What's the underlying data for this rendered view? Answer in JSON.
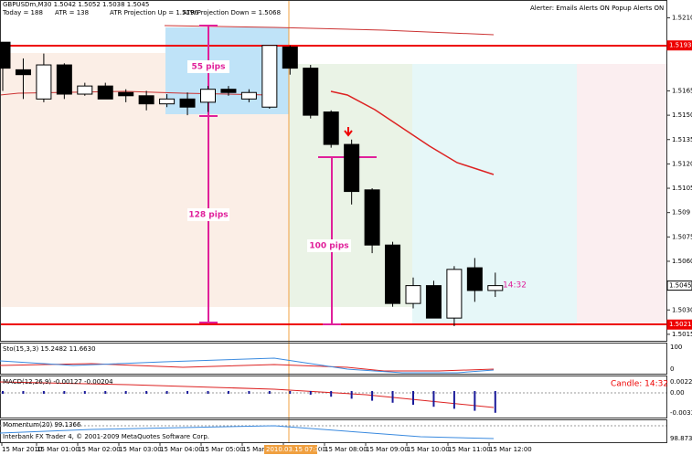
{
  "header": {
    "symbol": "GBPUSDm,M30  1.5042 1.5052 1.5038 1.5045",
    "stats": [
      "Today = 188",
      "ATR = 138",
      "ATR Projection Up = 1.5196",
      "ATR Projection Down = 1.5068"
    ],
    "alerter": "Alerter:  Emails Alerts ON    Popup Alerts ON"
  },
  "chart_data": {
    "type": "candlestick",
    "open": [
      1.5195,
      1.5178,
      1.516,
      1.5181,
      1.5163,
      1.5168,
      1.5164,
      1.5162,
      1.5157,
      1.516,
      1.5158,
      1.5166,
      1.516,
      1.5155,
      1.5192,
      1.5179,
      1.5152,
      1.5132,
      1.5104,
      1.507,
      1.5034,
      1.5045,
      1.5025,
      1.5056,
      1.5042
    ],
    "high": [
      1.5195,
      1.5185,
      1.5188,
      1.5182,
      1.517,
      1.517,
      1.5166,
      1.5165,
      1.5163,
      1.5164,
      1.5168,
      1.5168,
      1.5166,
      1.5193,
      1.5193,
      1.5181,
      1.5153,
      1.5135,
      1.5105,
      1.5072,
      1.505,
      1.5048,
      1.5057,
      1.5062,
      1.5053
    ],
    "low": [
      1.5165,
      1.516,
      1.5158,
      1.516,
      1.5162,
      1.516,
      1.5158,
      1.5153,
      1.5155,
      1.515,
      1.5152,
      1.5162,
      1.5158,
      1.5154,
      1.5175,
      1.5148,
      1.513,
      1.5095,
      1.5065,
      1.5032,
      1.5031,
      1.5025,
      1.502,
      1.5035,
      1.5038
    ],
    "close": [
      1.5179,
      1.5175,
      1.5181,
      1.5163,
      1.5168,
      1.516,
      1.5162,
      1.5157,
      1.516,
      1.5155,
      1.5166,
      1.5164,
      1.5164,
      1.5193,
      1.5179,
      1.515,
      1.5132,
      1.5103,
      1.507,
      1.5034,
      1.5045,
      1.5025,
      1.5055,
      1.5042,
      1.5045
    ],
    "ylim": [
      1.5011,
      1.5221
    ],
    "yticks": [
      {
        "value": 1.521,
        "label": "1.5210"
      },
      {
        "value": 1.5165,
        "label": "1.5165"
      },
      {
        "value": 1.515,
        "label": "1.5150"
      },
      {
        "value": 1.5135,
        "label": "1.5135"
      },
      {
        "value": 1.512,
        "label": "1.5120"
      },
      1.5105,
      1.509,
      1.5075,
      {
        "value": 1.506,
        "label": "1.5060"
      },
      {
        "value": 1.503,
        "label": "1.5030"
      },
      1.5015
    ],
    "price_boxes": [
      {
        "value": 1.5193,
        "label": "1.5193"
      },
      1.5045,
      1.5021
    ],
    "x_labels": [
      "15 Mar 2010",
      "15 Mar 01:00",
      "15 Mar 02:00",
      "15 Mar 03:00",
      "15 Mar 04:00",
      "15 Mar 05:00",
      "15 Mar 06:00",
      "15 Mar 07:00",
      "15 Mar 08:00",
      "15 Mar 09:00",
      "15 Mar 10:00",
      "15 Mar 11:00",
      "15 Mar 12:00"
    ],
    "cursor_time": "2010.03.15 07:30",
    "annotations": [
      "55 pips",
      "128 pips",
      "100 pips",
      "14:32"
    ]
  },
  "indicators": {
    "stochastic": "Sto(15,3,3) 15.2482 11.6630",
    "sto_axis": [
      "100",
      "0"
    ],
    "macd": "MACD(12,26,9) -0.00127 -0.00204",
    "macd_axis": [
      "0.00223",
      "0.00",
      "-0.00334"
    ],
    "candle_timer": "Candle: 14:32",
    "momentum": "Momentum(20) 99.1366",
    "momentum_axis": "98.8736"
  },
  "footer": "Interbank FX Trader 4, © 2001-2009 MetaQuotes Software Corp."
}
